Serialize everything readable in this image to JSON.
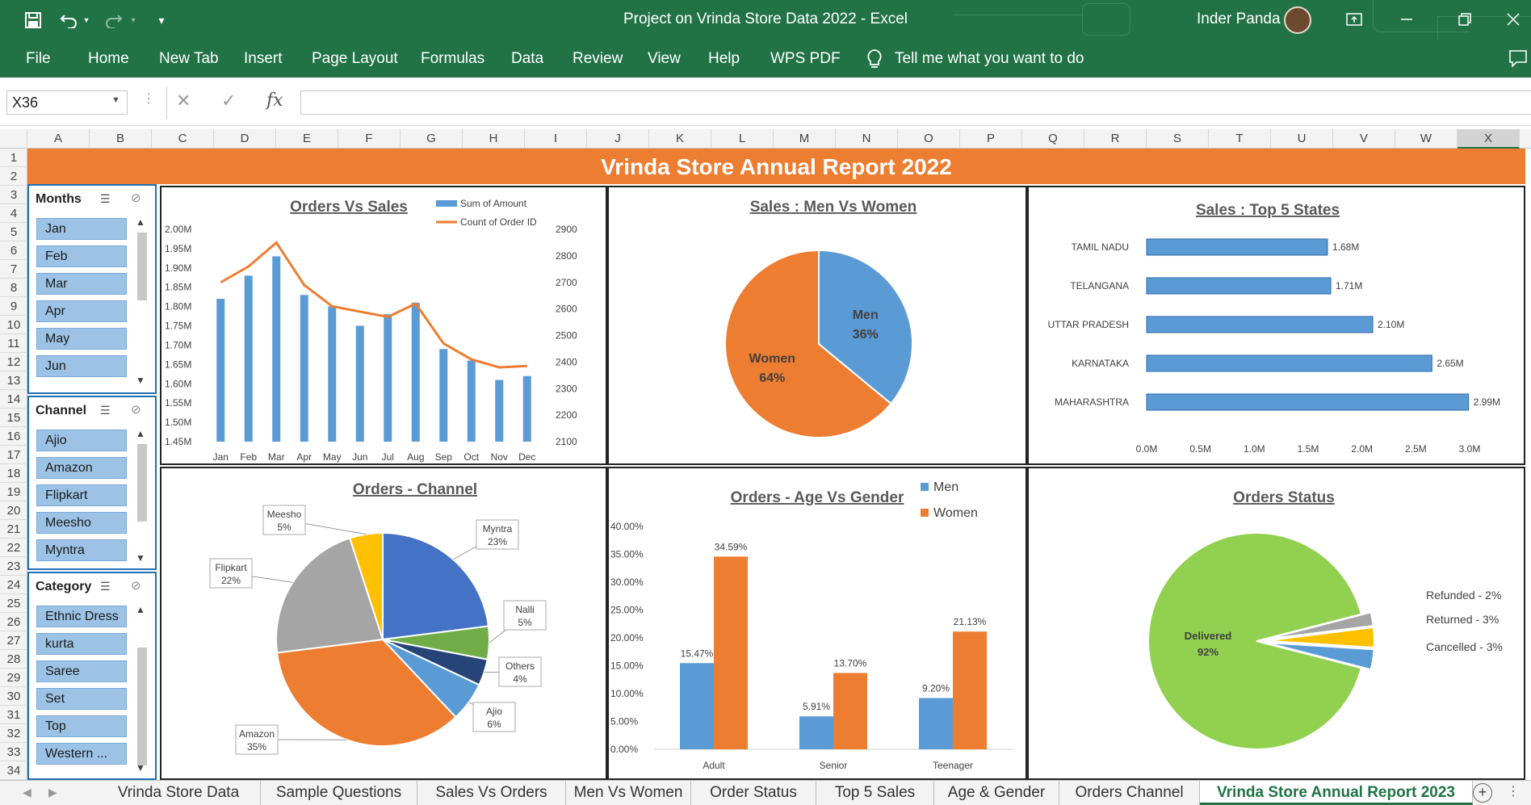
{
  "window": {
    "title": "Project on Vrinda Store Data 2022  -  Excel",
    "user": "Inder Panda"
  },
  "ribbon": {
    "tabs": [
      "File",
      "Home",
      "New Tab",
      "Insert",
      "Page Layout",
      "Formulas",
      "Data",
      "Review",
      "View",
      "Help",
      "WPS PDF"
    ],
    "tell_me": "Tell me what you want to do"
  },
  "formula_bar": {
    "name_box": "X36",
    "fx_label": "fx",
    "formula": ""
  },
  "columns": [
    "A",
    "B",
    "C",
    "D",
    "E",
    "F",
    "G",
    "H",
    "I",
    "J",
    "K",
    "L",
    "M",
    "N",
    "O",
    "P",
    "Q",
    "R",
    "S",
    "T",
    "U",
    "V",
    "W",
    "X"
  ],
  "rows": [
    "1",
    "2",
    "3",
    "4",
    "5",
    "6",
    "7",
    "8",
    "9",
    "10",
    "11",
    "12",
    "13",
    "14",
    "15",
    "16",
    "17",
    "18",
    "19",
    "20",
    "21",
    "22",
    "23",
    "24",
    "25",
    "26",
    "27",
    "28",
    "29",
    "30",
    "31",
    "32",
    "33",
    "34"
  ],
  "report": {
    "banner": "Vrinda Store Annual Report 2022"
  },
  "slicers": {
    "months": {
      "title": "Months",
      "items": [
        "Jan",
        "Feb",
        "Mar",
        "Apr",
        "May",
        "Jun"
      ]
    },
    "channel": {
      "title": "Channel",
      "items": [
        "Ajio",
        "Amazon",
        "Flipkart",
        "Meesho",
        "Myntra"
      ]
    },
    "category": {
      "title": "Category",
      "items": [
        "Ethnic Dress",
        "kurta",
        "Saree",
        "Set",
        "Top",
        "Western ..."
      ]
    }
  },
  "colors": {
    "excel_green": "#217346",
    "orange": "#ED7D31",
    "blue": "#5B9BD5",
    "dark_blue": "#4472C4",
    "green_pie": "#92D050",
    "gray": "#A5A5A5",
    "yellow": "#FFC000"
  },
  "chart_data": [
    {
      "id": "orders_vs_sales",
      "type": "bar",
      "title": "Orders Vs Sales",
      "categories": [
        "Jan",
        "Feb",
        "Mar",
        "Apr",
        "May",
        "Jun",
        "Jul",
        "Aug",
        "Sep",
        "Oct",
        "Nov",
        "Dec"
      ],
      "series": [
        {
          "name": "Sum of Amount",
          "type": "bar",
          "axis": "left",
          "values": [
            1.82,
            1.88,
            1.93,
            1.83,
            1.8,
            1.75,
            1.78,
            1.81,
            1.69,
            1.66,
            1.61,
            1.62
          ]
        },
        {
          "name": "Count of Order ID",
          "type": "line",
          "axis": "right",
          "values": [
            2700,
            2760,
            2850,
            2690,
            2610,
            2590,
            2570,
            2620,
            2470,
            2410,
            2380,
            2385
          ]
        }
      ],
      "y_left": {
        "ticks": [
          "2.00M",
          "1.95M",
          "1.90M",
          "1.85M",
          "1.80M",
          "1.75M",
          "1.70M",
          "1.65M",
          "1.60M",
          "1.55M",
          "1.50M",
          "1.45M"
        ],
        "ylim": [
          1.45,
          2.0
        ]
      },
      "y_right": {
        "ticks": [
          "2900",
          "2800",
          "2700",
          "2600",
          "2500",
          "2400",
          "2300",
          "2200",
          "2100"
        ],
        "ylim": [
          2100,
          2900
        ]
      },
      "legend": "top-right"
    },
    {
      "id": "sales_men_women",
      "type": "pie",
      "title": "Sales : Men Vs Women",
      "slices": [
        {
          "label": "Men",
          "value": 36,
          "text": "36%",
          "color": "#5B9BD5"
        },
        {
          "label": "Women",
          "value": 64,
          "text": "64%",
          "color": "#ED7D31"
        }
      ]
    },
    {
      "id": "top5_states",
      "type": "bar",
      "orientation": "horizontal",
      "title": "Sales : Top 5 States",
      "categories": [
        "TAMIL NADU",
        "TELANGANA",
        "UTTAR PRADESH",
        "KARNATAKA",
        "MAHARASHTRA"
      ],
      "values": [
        1.68,
        1.71,
        2.1,
        2.65,
        2.99
      ],
      "labels": [
        "1.68M",
        "1.71M",
        "2.10M",
        "2.65M",
        "2.99M"
      ],
      "x_ticks": [
        "0.0M",
        "0.5M",
        "1.0M",
        "1.5M",
        "2.0M",
        "2.5M",
        "3.0M"
      ],
      "xlim": [
        0,
        3.0
      ]
    },
    {
      "id": "orders_channel",
      "type": "pie",
      "title": "Orders - Channel",
      "slices": [
        {
          "label": "Myntra",
          "value": 23,
          "text": "23%",
          "color": "#4472C4"
        },
        {
          "label": "Nalli",
          "value": 5,
          "text": "5%",
          "color": "#70AD47"
        },
        {
          "label": "Others",
          "value": 4,
          "text": "4%",
          "color": "#264478"
        },
        {
          "label": "Ajio",
          "value": 6,
          "text": "6%",
          "color": "#5B9BD5"
        },
        {
          "label": "Amazon",
          "value": 35,
          "text": "35%",
          "color": "#ED7D31"
        },
        {
          "label": "Flipkart",
          "value": 22,
          "text": "22%",
          "color": "#A5A5A5"
        },
        {
          "label": "Meesho",
          "value": 5,
          "text": "5%",
          "color": "#FFC000"
        }
      ]
    },
    {
      "id": "age_vs_gender",
      "type": "bar",
      "title": "Orders - Age Vs Gender",
      "categories": [
        "Adult",
        "Senior",
        "Teenager"
      ],
      "series": [
        {
          "name": "Men",
          "values": [
            15.47,
            5.91,
            9.2
          ],
          "labels": [
            "15.47%",
            "5.91%",
            "9.20%"
          ],
          "color": "#5B9BD5"
        },
        {
          "name": "Women",
          "values": [
            34.59,
            13.7,
            21.13
          ],
          "labels": [
            "34.59%",
            "13.70%",
            "21.13%"
          ],
          "color": "#ED7D31"
        }
      ],
      "y_ticks": [
        "40.00%",
        "35.00%",
        "30.00%",
        "25.00%",
        "20.00%",
        "15.00%",
        "10.00%",
        "5.00%",
        "0.00%"
      ],
      "ylim": [
        0,
        40
      ],
      "legend": "top-right"
    },
    {
      "id": "orders_status",
      "type": "pie",
      "title": "Orders Status",
      "slices": [
        {
          "label": "Delivered",
          "value": 92,
          "text": "92%",
          "color": "#92D050"
        },
        {
          "label": "Refunded - 2%",
          "value": 2,
          "color": "#A5A5A5"
        },
        {
          "label": "Returned - 3%",
          "value": 3,
          "color": "#FFC000"
        },
        {
          "label": "Cancelled - 3%",
          "value": 3,
          "color": "#5B9BD5"
        }
      ]
    }
  ],
  "sheet_tabs": {
    "tabs": [
      "Vrinda Store Data",
      "Sample Questions",
      "Sales Vs Orders",
      "Men Vs Women",
      "Order Status",
      "Top 5 Sales",
      "Age & Gender",
      "Orders Channel",
      "Vrinda Store Annual Report 2023"
    ],
    "active": "Vrinda Store Annual Report 2023"
  }
}
